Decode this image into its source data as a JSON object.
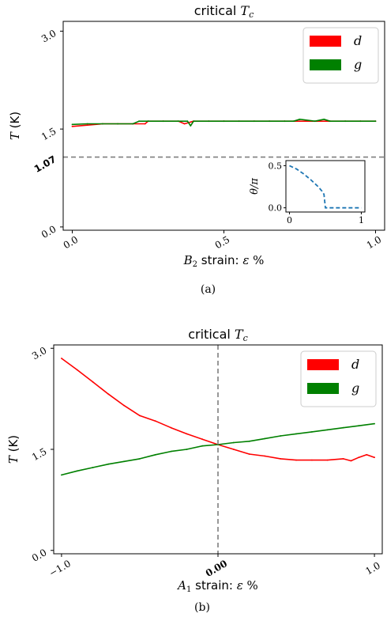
{
  "chart_data": [
    {
      "panel_label": "(a)",
      "type": "line",
      "title_prefix": "critical ",
      "title_math": "T",
      "title_sub": "c",
      "xlabel_math": "B",
      "xlabel_sub": "2",
      "xlabel_text": " strain: ",
      "xlabel_eps": "ε",
      "xlabel_unit": " %",
      "ylabel_math": "T",
      "ylabel_unit": " (K)",
      "xlim": [
        -0.03,
        1.03
      ],
      "ylim": [
        -0.05,
        3.15
      ],
      "xticks": [
        {
          "v": 0.0,
          "label": "0.0"
        },
        {
          "v": 0.5,
          "label": "0.5"
        },
        {
          "v": 1.0,
          "label": "1.0"
        }
      ],
      "yticks": [
        {
          "v": 0.0,
          "label": "0.0"
        },
        {
          "v": 1.5,
          "label": "1.5"
        },
        {
          "v": 3.0,
          "label": "3.0"
        }
      ],
      "hline": {
        "y": 1.07,
        "label": "1.07",
        "style": "dashed",
        "color": "#7f7f7f"
      },
      "legend": {
        "position": "top-right"
      },
      "series": [
        {
          "name": "d",
          "color": "#ff0000",
          "x": [
            0.0,
            0.05,
            0.1,
            0.15,
            0.2,
            0.24,
            0.25,
            0.3,
            0.35,
            0.37,
            0.4,
            0.45,
            0.5,
            0.55,
            0.6,
            0.65,
            0.7,
            0.75,
            0.8,
            0.85,
            0.9,
            0.95,
            1.0
          ],
          "y": [
            1.54,
            1.56,
            1.58,
            1.58,
            1.58,
            1.58,
            1.62,
            1.62,
            1.62,
            1.58,
            1.62,
            1.62,
            1.62,
            1.62,
            1.62,
            1.62,
            1.62,
            1.62,
            1.62,
            1.62,
            1.62,
            1.62,
            1.62
          ]
        },
        {
          "name": "g",
          "color": "#008000",
          "x": [
            0.0,
            0.05,
            0.1,
            0.15,
            0.2,
            0.22,
            0.25,
            0.3,
            0.35,
            0.38,
            0.39,
            0.4,
            0.45,
            0.5,
            0.55,
            0.6,
            0.65,
            0.7,
            0.73,
            0.75,
            0.8,
            0.83,
            0.85,
            0.9,
            0.95,
            1.0
          ],
          "y": [
            1.57,
            1.58,
            1.58,
            1.58,
            1.58,
            1.62,
            1.62,
            1.62,
            1.62,
            1.62,
            1.55,
            1.62,
            1.62,
            1.62,
            1.62,
            1.62,
            1.62,
            1.62,
            1.62,
            1.65,
            1.62,
            1.65,
            1.62,
            1.62,
            1.62,
            1.62
          ]
        }
      ],
      "inset": {
        "ylabel_math": "θ/π",
        "xlim": [
          -0.05,
          1.05
        ],
        "ylim": [
          -0.05,
          0.56
        ],
        "xticks": [
          {
            "v": 0,
            "label": "0"
          },
          {
            "v": 1,
            "label": "1"
          }
        ],
        "yticks": [
          {
            "v": 0.0,
            "label": "0.0"
          },
          {
            "v": 0.5,
            "label": "0.5"
          }
        ],
        "series": [
          {
            "color": "#1f77b4",
            "style": "dashed",
            "x": [
              0.0,
              0.1,
              0.2,
              0.3,
              0.4,
              0.45,
              0.48,
              0.5,
              0.55,
              0.6,
              0.7,
              0.8,
              0.9,
              1.0
            ],
            "y": [
              0.5,
              0.46,
              0.4,
              0.33,
              0.25,
              0.2,
              0.16,
              0.0,
              0.0,
              0.0,
              0.0,
              0.0,
              0.0,
              0.0
            ]
          }
        ]
      }
    },
    {
      "panel_label": "(b)",
      "type": "line",
      "title_prefix": "critical ",
      "title_math": "T",
      "title_sub": "c",
      "xlabel_math": "A",
      "xlabel_sub": "1",
      "xlabel_text": " strain: ",
      "xlabel_eps": "ε",
      "xlabel_unit": " %",
      "ylabel_math": "T",
      "ylabel_unit": " (K)",
      "xlim": [
        -1.05,
        1.05
      ],
      "ylim": [
        -0.05,
        3.05
      ],
      "xticks": [
        {
          "v": -1.0,
          "label": "−1.0"
        },
        {
          "v": 0.0,
          "label": "0.00"
        },
        {
          "v": 1.0,
          "label": "1.0"
        }
      ],
      "yticks": [
        {
          "v": 0.0,
          "label": "0.0"
        },
        {
          "v": 1.5,
          "label": "1.5"
        },
        {
          "v": 3.0,
          "label": "3.0"
        }
      ],
      "vline": {
        "x": 0.0,
        "style": "dashed",
        "color": "#7f7f7f"
      },
      "legend": {
        "position": "top-right"
      },
      "series": [
        {
          "name": "d",
          "color": "#ff0000",
          "x": [
            -1.0,
            -0.9,
            -0.8,
            -0.7,
            -0.6,
            -0.5,
            -0.4,
            -0.3,
            -0.2,
            -0.1,
            0.0,
            0.1,
            0.2,
            0.3,
            0.4,
            0.5,
            0.6,
            0.7,
            0.8,
            0.85,
            0.9,
            0.95,
            1.0
          ],
          "y": [
            2.85,
            2.68,
            2.5,
            2.32,
            2.15,
            2.0,
            1.92,
            1.82,
            1.73,
            1.65,
            1.57,
            1.5,
            1.43,
            1.4,
            1.36,
            1.34,
            1.34,
            1.34,
            1.36,
            1.33,
            1.38,
            1.42,
            1.38
          ]
        },
        {
          "name": "g",
          "color": "#008000",
          "x": [
            -1.0,
            -0.9,
            -0.8,
            -0.7,
            -0.6,
            -0.5,
            -0.4,
            -0.3,
            -0.2,
            -0.1,
            0.0,
            0.1,
            0.2,
            0.3,
            0.4,
            0.5,
            0.6,
            0.7,
            0.8,
            0.9,
            1.0
          ],
          "y": [
            1.12,
            1.18,
            1.23,
            1.28,
            1.32,
            1.36,
            1.42,
            1.47,
            1.5,
            1.55,
            1.57,
            1.6,
            1.62,
            1.66,
            1.7,
            1.73,
            1.76,
            1.79,
            1.82,
            1.85,
            1.88
          ]
        }
      ]
    }
  ]
}
